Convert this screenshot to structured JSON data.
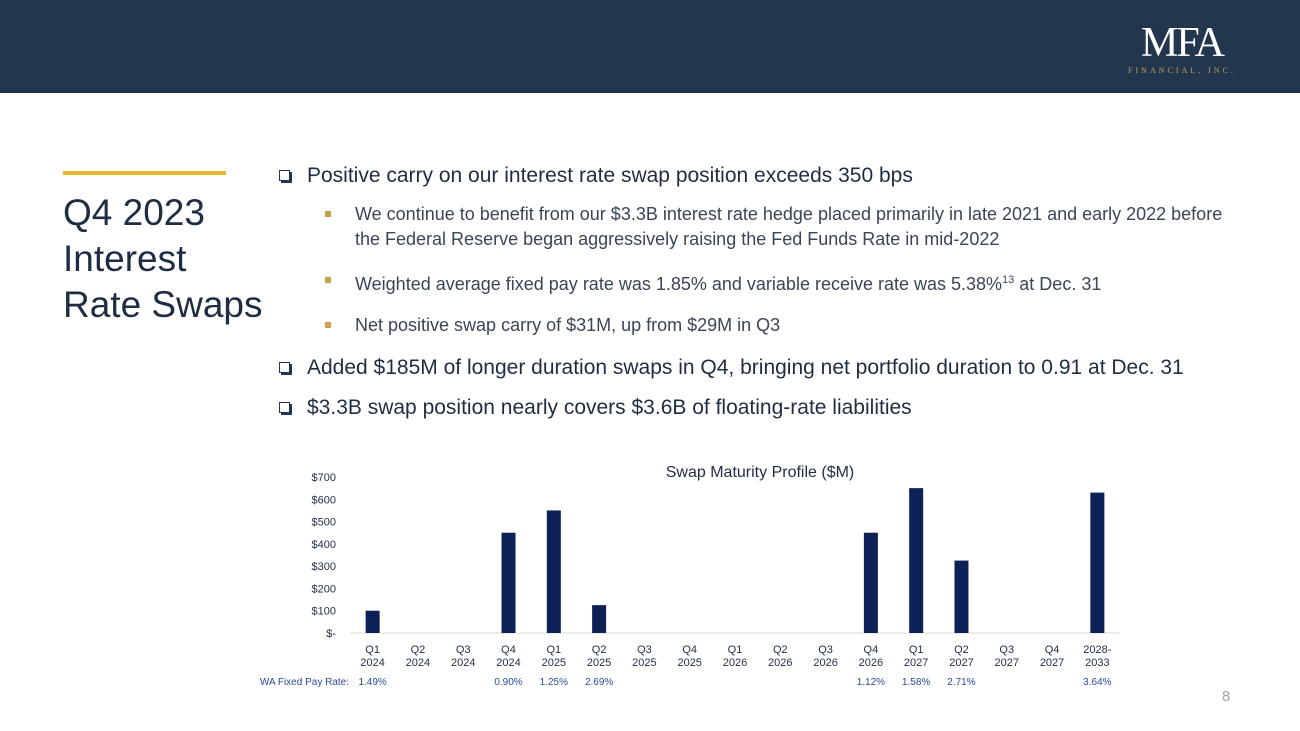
{
  "header": {
    "logo_text": "MFA",
    "logo_subtext": "FINANCIAL, INC."
  },
  "title": {
    "lines": [
      "Q4 2023",
      "Interest",
      "Rate Swaps"
    ]
  },
  "bullets": {
    "b1": "Positive carry on our interest rate swap position exceeds 350 bps",
    "b1_sub1": "We continue to benefit from our $3.3B interest rate hedge placed primarily in late 2021 and early 2022 before the Federal Reserve began aggressively raising the Fed Funds Rate in mid-2022",
    "b1_sub2_pre": "Weighted average fixed pay rate was 1.85% and variable receive rate was 5.38%",
    "b1_sub2_sup": "13",
    "b1_sub2_post": " at Dec. 31",
    "b1_sub3": "Net positive swap carry of $31M, up from $29M in Q3",
    "b2": "Added $185M of longer duration swaps in Q4, bringing net portfolio duration to 0.91 at Dec. 31",
    "b3": "$3.3B swap position nearly covers $3.6B of floating-rate liabilities"
  },
  "chart_data": {
    "type": "bar",
    "title": "Swap Maturity Profile ($M)",
    "xlabel": "",
    "ylabel": "",
    "ylim": [
      0,
      700
    ],
    "yticks": [
      0,
      100,
      200,
      300,
      400,
      500,
      600,
      700
    ],
    "ytick_labels": [
      "$-",
      "$100",
      "$200",
      "$300",
      "$400",
      "$500",
      "$600",
      "$700"
    ],
    "categories": [
      [
        "Q1",
        "2024"
      ],
      [
        "Q2",
        "2024"
      ],
      [
        "Q3",
        "2024"
      ],
      [
        "Q4",
        "2024"
      ],
      [
        "Q1",
        "2025"
      ],
      [
        "Q2",
        "2025"
      ],
      [
        "Q3",
        "2025"
      ],
      [
        "Q4",
        "2025"
      ],
      [
        "Q1",
        "2026"
      ],
      [
        "Q2",
        "2026"
      ],
      [
        "Q3",
        "2026"
      ],
      [
        "Q4",
        "2026"
      ],
      [
        "Q1",
        "2027"
      ],
      [
        "Q2",
        "2027"
      ],
      [
        "Q3",
        "2027"
      ],
      [
        "Q4",
        "2027"
      ],
      [
        "2028-",
        "2033"
      ]
    ],
    "values": [
      100,
      0,
      0,
      450,
      550,
      125,
      0,
      0,
      0,
      0,
      0,
      450,
      650,
      325,
      0,
      0,
      630
    ],
    "bar_color": "#0d2157",
    "grid": false,
    "legend": "none",
    "fixed_rate_label": "WA Fixed Pay Rate:",
    "fixed_rates": [
      "1.49%",
      "",
      "",
      "0.90%",
      "1.25%",
      "2.69%",
      "",
      "",
      "",
      "",
      "",
      "1.12%",
      "1.58%",
      "2.71%",
      "",
      "",
      "3.64%"
    ]
  },
  "footer": {
    "page_number": "8"
  }
}
